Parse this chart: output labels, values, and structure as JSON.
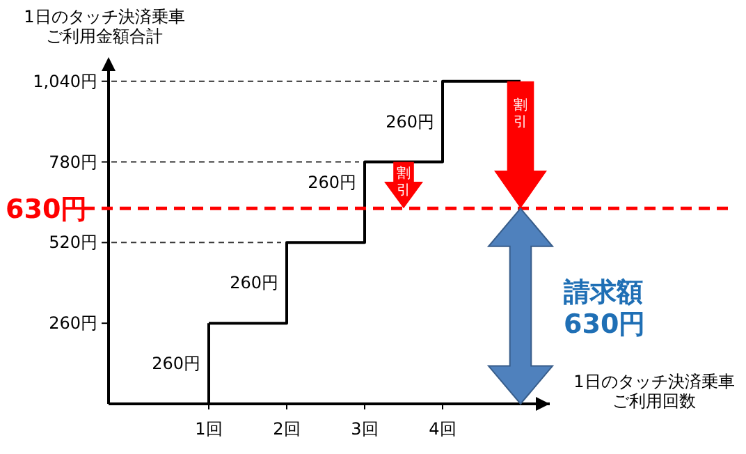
{
  "chart_data": {
    "type": "step",
    "categories": [
      "1回",
      "2回",
      "3回",
      "4回"
    ],
    "values": [
      260,
      520,
      780,
      1040
    ],
    "color": "#000000",
    "ylim": [
      0,
      1100
    ],
    "yticks": [
      {
        "value": 260,
        "label": "260円"
      },
      {
        "value": 520,
        "label": "520円"
      },
      {
        "value": 780,
        "label": "780円"
      },
      {
        "value": 1040,
        "label": "1,040円"
      }
    ],
    "xlabel": "1日のタッチ決済乗車ご利用回数",
    "ylabel": "1日のタッチ決済乗車ご利用金額合計",
    "ref_lines": [
      {
        "axis": "y",
        "value": 630,
        "label": "630円",
        "color": "#ff0000",
        "line_style": "dashed"
      }
    ],
    "annotations": [
      "260円",
      "260円",
      "260円",
      "260円",
      "割引",
      "割引",
      "請求額",
      "630円"
    ]
  }
}
